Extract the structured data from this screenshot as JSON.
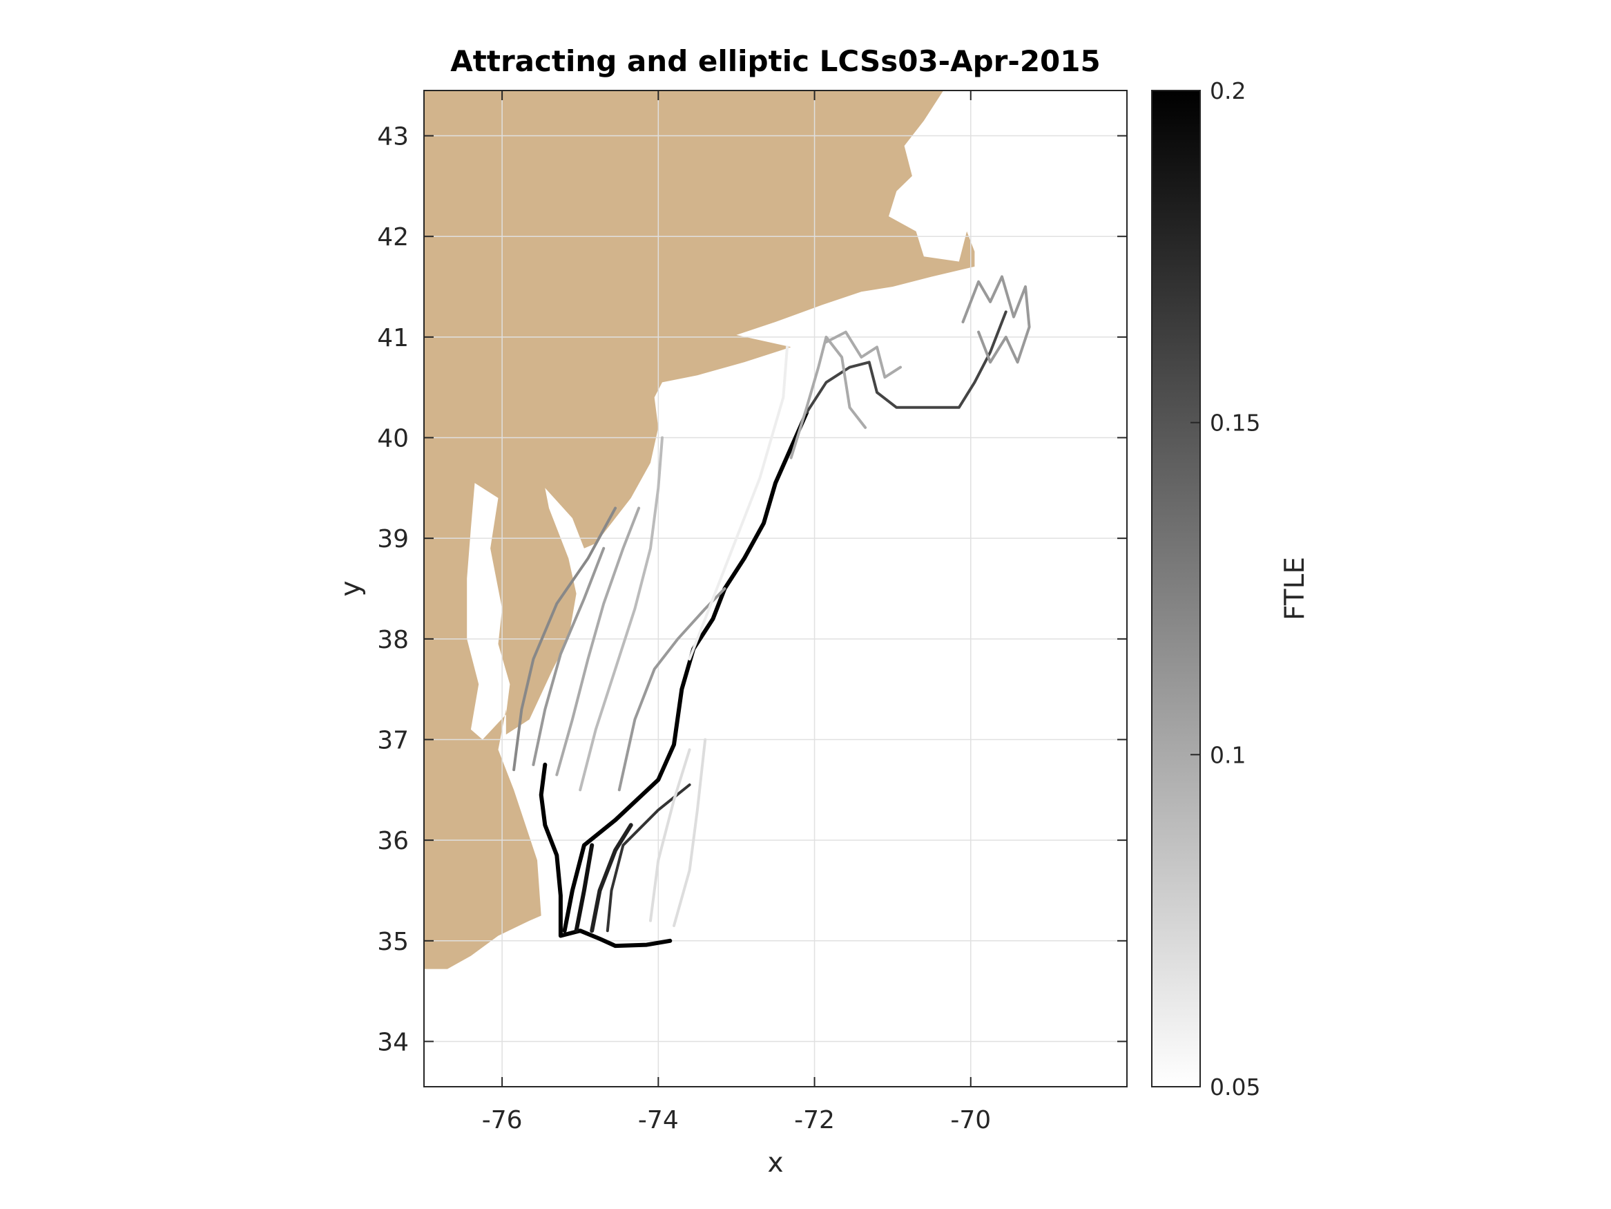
{
  "chart_data": {
    "type": "heatmap",
    "title": "Attracting and elliptic LCSs03-Apr-2015",
    "xlabel": "x",
    "ylabel": "y",
    "xlim": [
      -77,
      -68
    ],
    "ylim": [
      33.55,
      43.45
    ],
    "xticks": [
      -76,
      -74,
      -72,
      -70
    ],
    "yticks": [
      34,
      35,
      36,
      37,
      38,
      39,
      40,
      41,
      42,
      43
    ],
    "xtick_labels": [
      "-76",
      "-74",
      "-72",
      "-70"
    ],
    "ytick_labels": [
      "34",
      "35",
      "36",
      "37",
      "38",
      "39",
      "40",
      "41",
      "42",
      "43"
    ],
    "grid": true,
    "colorbar": {
      "label": "FTLE",
      "range": [
        0.05,
        0.2
      ],
      "ticks": [
        0.05,
        0.1,
        0.15,
        0.2
      ],
      "tick_labels": [
        "0.05",
        "0.1",
        "0.15",
        "0.2"
      ],
      "colormap": "gray (white to black)"
    },
    "colors": {
      "land": "#d2b48c",
      "grid": "#e0e0e0",
      "axis": "#262626"
    },
    "land_outline": [
      [
        -77,
        43.45
      ],
      [
        -76.7,
        43.45
      ],
      [
        -70.35,
        43.45
      ],
      [
        -70.6,
        43.15
      ],
      [
        -70.85,
        42.9
      ],
      [
        -70.75,
        42.6
      ],
      [
        -70.95,
        42.45
      ],
      [
        -71.05,
        42.2
      ],
      [
        -70.7,
        42.05
      ],
      [
        -70.6,
        41.8
      ],
      [
        -70.15,
        41.75
      ],
      [
        -70.05,
        42.05
      ],
      [
        -69.95,
        41.85
      ],
      [
        -69.95,
        41.7
      ],
      [
        -70.5,
        41.6
      ],
      [
        -71.0,
        41.5
      ],
      [
        -71.4,
        41.45
      ],
      [
        -71.9,
        41.32
      ],
      [
        -72.5,
        41.15
      ],
      [
        -73.0,
        41.02
      ],
      [
        -72.3,
        40.9
      ],
      [
        -72.9,
        40.75
      ],
      [
        -73.5,
        40.62
      ],
      [
        -73.95,
        40.55
      ],
      [
        -74.05,
        40.4
      ],
      [
        -74.0,
        40.1
      ],
      [
        -74.1,
        39.75
      ],
      [
        -74.35,
        39.4
      ],
      [
        -74.8,
        38.95
      ],
      [
        -74.95,
        38.9
      ],
      [
        -75.1,
        39.2
      ],
      [
        -75.45,
        39.5
      ],
      [
        -75.4,
        39.3
      ],
      [
        -75.15,
        38.8
      ],
      [
        -75.05,
        38.45
      ],
      [
        -75.15,
        38.0
      ],
      [
        -75.35,
        37.7
      ],
      [
        -75.65,
        37.2
      ],
      [
        -75.95,
        37.05
      ],
      [
        -75.95,
        37.3
      ],
      [
        -76.05,
        36.9
      ],
      [
        -75.85,
        36.5
      ],
      [
        -75.55,
        35.8
      ],
      [
        -75.5,
        35.25
      ],
      [
        -75.65,
        35.2
      ],
      [
        -76.05,
        35.05
      ],
      [
        -76.4,
        34.85
      ],
      [
        -76.7,
        34.72
      ],
      [
        -77,
        34.72
      ]
    ],
    "bay_outline": [
      [
        -76.35,
        39.55
      ],
      [
        -76.05,
        39.4
      ],
      [
        -76.15,
        38.9
      ],
      [
        -76.0,
        38.3
      ],
      [
        -76.05,
        37.95
      ],
      [
        -75.9,
        37.55
      ],
      [
        -75.95,
        37.25
      ],
      [
        -76.25,
        37.0
      ],
      [
        -76.4,
        37.1
      ],
      [
        -76.3,
        37.55
      ],
      [
        -76.45,
        38.0
      ],
      [
        -76.45,
        38.6
      ],
      [
        -76.4,
        39.1
      ]
    ],
    "series": [
      {
        "ftle": 0.2,
        "points": [
          [
            -75.45,
            36.75
          ],
          [
            -75.5,
            36.45
          ],
          [
            -75.45,
            36.15
          ],
          [
            -75.3,
            35.85
          ],
          [
            -75.25,
            35.45
          ],
          [
            -75.25,
            35.05
          ],
          [
            -75.0,
            35.1
          ],
          [
            -74.75,
            35.02
          ],
          [
            -74.55,
            34.95
          ],
          [
            -74.15,
            34.96
          ],
          [
            -73.85,
            35.0
          ]
        ]
      },
      {
        "ftle": 0.2,
        "points": [
          [
            -75.2,
            35.1
          ],
          [
            -75.1,
            35.5
          ],
          [
            -74.95,
            35.95
          ],
          [
            -74.55,
            36.2
          ],
          [
            -74.0,
            36.6
          ],
          [
            -73.8,
            36.95
          ],
          [
            -73.7,
            37.5
          ],
          [
            -73.55,
            37.9
          ],
          [
            -73.3,
            38.2
          ],
          [
            -73.15,
            38.5
          ],
          [
            -72.9,
            38.8
          ],
          [
            -72.65,
            39.15
          ],
          [
            -72.5,
            39.55
          ],
          [
            -72.3,
            39.9
          ],
          [
            -72.1,
            40.25
          ]
        ]
      },
      {
        "ftle": 0.19,
        "points": [
          [
            -75.05,
            35.1
          ],
          [
            -74.95,
            35.5
          ],
          [
            -74.85,
            35.95
          ]
        ]
      },
      {
        "ftle": 0.18,
        "points": [
          [
            -74.85,
            35.1
          ],
          [
            -74.75,
            35.5
          ],
          [
            -74.55,
            35.9
          ],
          [
            -74.35,
            36.15
          ]
        ]
      },
      {
        "ftle": 0.17,
        "points": [
          [
            -74.65,
            35.1
          ],
          [
            -74.6,
            35.5
          ],
          [
            -74.45,
            35.95
          ],
          [
            -74.0,
            36.3
          ],
          [
            -73.6,
            36.55
          ]
        ]
      },
      {
        "ftle": 0.16,
        "points": [
          [
            -72.1,
            40.25
          ],
          [
            -71.85,
            40.55
          ],
          [
            -71.55,
            40.7
          ],
          [
            -71.3,
            40.75
          ],
          [
            -71.2,
            40.45
          ],
          [
            -70.95,
            40.3
          ],
          [
            -70.6,
            40.3
          ],
          [
            -70.15,
            40.3
          ],
          [
            -69.95,
            40.55
          ],
          [
            -69.75,
            40.85
          ],
          [
            -69.55,
            41.25
          ]
        ]
      },
      {
        "ftle": 0.12,
        "points": [
          [
            -75.85,
            36.7
          ],
          [
            -75.75,
            37.3
          ],
          [
            -75.6,
            37.8
          ],
          [
            -75.3,
            38.35
          ],
          [
            -74.9,
            38.8
          ],
          [
            -74.55,
            39.3
          ]
        ]
      },
      {
        "ftle": 0.11,
        "points": [
          [
            -75.6,
            36.75
          ],
          [
            -75.45,
            37.3
          ],
          [
            -75.25,
            37.85
          ],
          [
            -74.95,
            38.4
          ],
          [
            -74.7,
            38.9
          ]
        ]
      },
      {
        "ftle": 0.1,
        "points": [
          [
            -75.3,
            36.65
          ],
          [
            -75.1,
            37.2
          ],
          [
            -74.9,
            37.8
          ],
          [
            -74.7,
            38.35
          ],
          [
            -74.45,
            38.9
          ],
          [
            -74.25,
            39.3
          ]
        ]
      },
      {
        "ftle": 0.09,
        "points": [
          [
            -75.0,
            36.5
          ],
          [
            -74.8,
            37.1
          ],
          [
            -74.55,
            37.7
          ],
          [
            -74.3,
            38.3
          ],
          [
            -74.1,
            38.9
          ],
          [
            -74.0,
            39.5
          ],
          [
            -73.95,
            40.0
          ]
        ]
      },
      {
        "ftle": 0.11,
        "points": [
          [
            -74.5,
            36.5
          ],
          [
            -74.3,
            37.2
          ],
          [
            -74.05,
            37.7
          ],
          [
            -73.75,
            38.0
          ],
          [
            -73.4,
            38.3
          ],
          [
            -73.15,
            38.5
          ]
        ]
      },
      {
        "ftle": 0.1,
        "points": [
          [
            -72.3,
            39.8
          ],
          [
            -72.1,
            40.3
          ],
          [
            -71.95,
            40.7
          ],
          [
            -71.85,
            41.0
          ],
          [
            -71.65,
            40.8
          ],
          [
            -71.55,
            40.3
          ],
          [
            -71.35,
            40.1
          ]
        ]
      },
      {
        "ftle": 0.1,
        "points": [
          [
            -71.85,
            40.95
          ],
          [
            -71.6,
            41.05
          ],
          [
            -71.4,
            40.8
          ],
          [
            -71.2,
            40.9
          ],
          [
            -71.1,
            40.6
          ],
          [
            -70.9,
            40.7
          ]
        ]
      },
      {
        "ftle": 0.11,
        "points": [
          [
            -70.1,
            41.15
          ],
          [
            -69.9,
            41.55
          ],
          [
            -69.75,
            41.35
          ],
          [
            -69.6,
            41.6
          ],
          [
            -69.45,
            41.2
          ],
          [
            -69.3,
            41.5
          ],
          [
            -69.25,
            41.1
          ],
          [
            -69.4,
            40.75
          ],
          [
            -69.55,
            41.0
          ],
          [
            -69.75,
            40.75
          ],
          [
            -69.9,
            41.05
          ]
        ]
      },
      {
        "ftle": 0.07,
        "points": [
          [
            -73.8,
            35.15
          ],
          [
            -73.6,
            35.7
          ],
          [
            -73.5,
            36.3
          ],
          [
            -73.4,
            37.0
          ]
        ]
      },
      {
        "ftle": 0.07,
        "points": [
          [
            -74.1,
            35.2
          ],
          [
            -74.0,
            35.8
          ],
          [
            -73.8,
            36.4
          ],
          [
            -73.6,
            36.9
          ]
        ]
      },
      {
        "ftle": 0.06,
        "points": [
          [
            -73.6,
            37.8
          ],
          [
            -73.4,
            38.2
          ],
          [
            -73.2,
            38.6
          ],
          [
            -72.95,
            39.1
          ],
          [
            -72.7,
            39.6
          ],
          [
            -72.55,
            40.0
          ],
          [
            -72.4,
            40.4
          ],
          [
            -72.35,
            40.9
          ]
        ]
      }
    ]
  }
}
